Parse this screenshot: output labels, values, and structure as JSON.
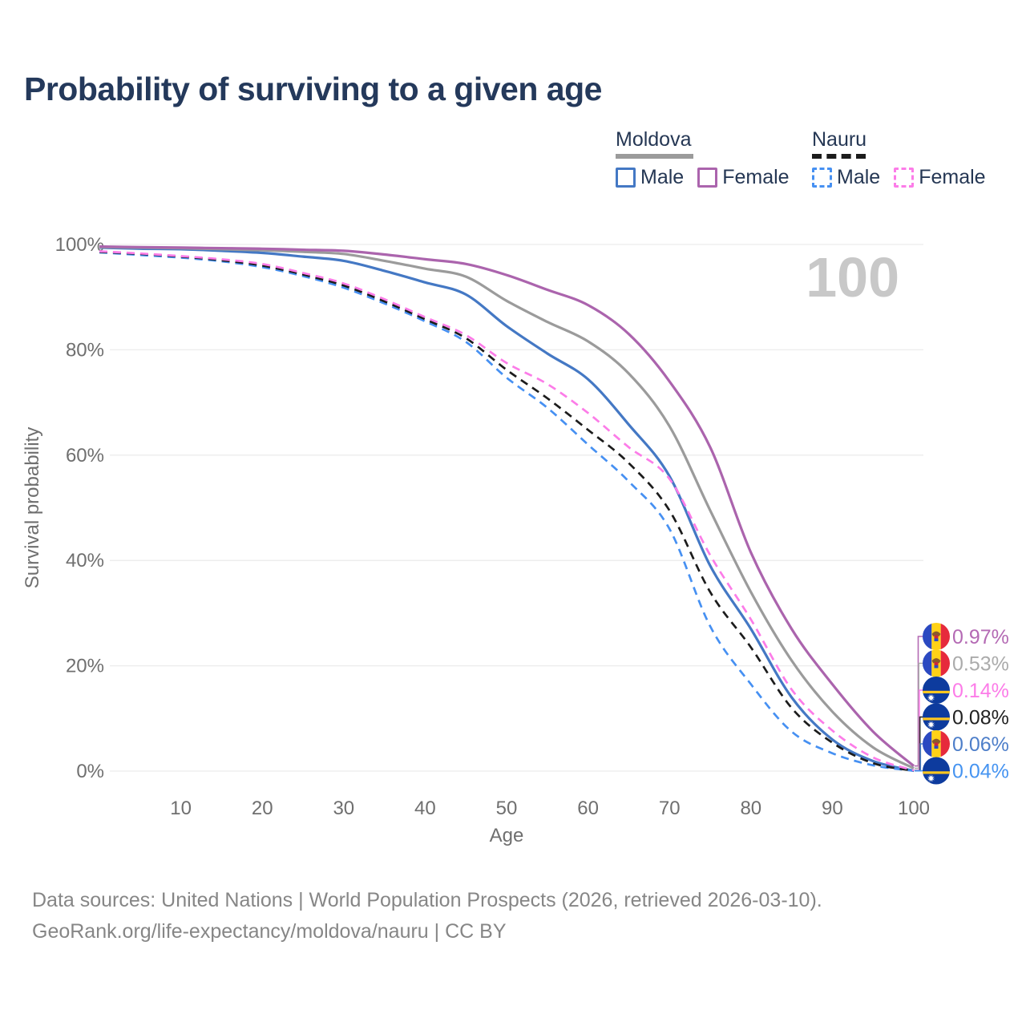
{
  "title": "Probability of surviving to a given age",
  "legend": {
    "groups": [
      {
        "id": "moldova",
        "title": "Moldova",
        "line_style": "solid",
        "items": [
          {
            "label": "Male"
          },
          {
            "label": "Female"
          }
        ]
      },
      {
        "id": "nauru",
        "title": "Nauru",
        "line_style": "dashed",
        "items": [
          {
            "label": "Male"
          },
          {
            "label": "Female"
          }
        ]
      }
    ]
  },
  "footer": {
    "line1": "Data sources: United Nations | World Population Prospects (2026, retrieved 2026-03-10).",
    "line2": "GeoRank.org/life-expectancy/moldova/nauru | CC BY"
  },
  "colors": {
    "title_text": "#24395b",
    "legend_text": "#253754",
    "axis_text": "#6f6f6f",
    "footer_text": "#868686",
    "gridline": "#ececec",
    "watermark": "#c8c8c8",
    "moldova_male": "#4478c4",
    "moldova_female": "#ab64ad",
    "moldova_all": "#9b9b9b",
    "nauru_male": "#4690f2",
    "nauru_female": "#fc7ce8",
    "nauru_all": "#1c1c1c",
    "flag_moldova": {
      "blue": "#2b49c1",
      "yellow": "#ffd217",
      "red": "#e62a3c",
      "emblem": "#8a5a2b",
      "shield_red": "#c8273c",
      "shield_blue": "#2b49c1"
    },
    "flag_nauru": {
      "blue": "#0d3b9e",
      "yellow": "#ffc71e",
      "star": "#ffffff"
    }
  },
  "chart_data": {
    "type": "line",
    "x_label": "Age",
    "y_label": "Survival probability",
    "x_ticks": [
      10,
      20,
      30,
      40,
      50,
      60,
      70,
      80,
      90,
      100
    ],
    "y_ticks": [
      0,
      20,
      40,
      60,
      80,
      100
    ],
    "y_tick_suffix": "%",
    "xlim": [
      0,
      100
    ],
    "ylim": [
      0,
      100
    ],
    "grid": "horizontal",
    "legend_position": "top-right",
    "watermark": "100",
    "ages": [
      0,
      5,
      10,
      15,
      20,
      25,
      30,
      35,
      40,
      45,
      50,
      55,
      60,
      65,
      70,
      75,
      80,
      85,
      90,
      95,
      100
    ],
    "series": [
      {
        "id": "moldova-male",
        "name": "Moldova Male",
        "country": "Moldova",
        "sex": "Male",
        "color": "#4478c4",
        "line_style": "solid",
        "values": [
          99.4,
          99.2,
          99.1,
          98.8,
          98.4,
          97.7,
          96.9,
          95.0,
          92.8,
          90.5,
          84.5,
          79.3,
          74.4,
          65.8,
          56.0,
          39.0,
          27.0,
          14.0,
          6.0,
          1.9,
          0.06
        ]
      },
      {
        "id": "moldova-all",
        "name": "Moldova",
        "country": "Moldova",
        "sex": "Both",
        "color": "#9b9b9b",
        "line_style": "solid",
        "values": [
          99.5,
          99.4,
          99.3,
          99.1,
          98.9,
          98.6,
          98.2,
          96.9,
          95.4,
          93.9,
          89.3,
          85.3,
          81.6,
          75.5,
          65.5,
          49.5,
          34.0,
          21.0,
          11.3,
          4.5,
          0.53
        ]
      },
      {
        "id": "moldova-female",
        "name": "Moldova Female",
        "country": "Moldova",
        "sex": "Female",
        "color": "#ab64ad",
        "line_style": "solid",
        "values": [
          99.6,
          99.5,
          99.4,
          99.3,
          99.2,
          99.0,
          98.8,
          98.1,
          97.2,
          96.3,
          94.2,
          91.4,
          88.5,
          83.0,
          74.0,
          61.5,
          41.5,
          27.0,
          16.5,
          7.5,
          0.97
        ]
      },
      {
        "id": "nauru-male",
        "name": "Nauru Male",
        "country": "Nauru",
        "sex": "Male",
        "color": "#4690f2",
        "line_style": "dashed",
        "values": [
          98.5,
          98.0,
          97.5,
          96.8,
          95.7,
          94.0,
          91.8,
          88.8,
          85.4,
          81.5,
          74.7,
          69.0,
          62.0,
          55.0,
          46.0,
          27.5,
          16.5,
          7.5,
          3.4,
          1.1,
          0.04
        ]
      },
      {
        "id": "nauru-all",
        "name": "Nauru",
        "country": "Nauru",
        "sex": "Both",
        "color": "#1c1c1c",
        "line_style": "dashed",
        "values": [
          98.6,
          98.2,
          97.7,
          97.0,
          96.0,
          94.3,
          92.2,
          89.2,
          85.8,
          82.2,
          76.2,
          70.8,
          64.8,
          58.5,
          49.5,
          34.0,
          23.5,
          12.0,
          5.4,
          1.5,
          0.08
        ]
      },
      {
        "id": "nauru-female",
        "name": "Nauru Female",
        "country": "Nauru",
        "sex": "Female",
        "color": "#fc7ce8",
        "line_style": "dashed",
        "values": [
          98.7,
          98.3,
          97.8,
          97.2,
          96.3,
          94.6,
          92.6,
          89.6,
          86.2,
          82.8,
          77.5,
          73.5,
          68.0,
          61.5,
          55.5,
          41.0,
          28.8,
          15.5,
          7.7,
          2.6,
          0.14
        ]
      }
    ],
    "end_labels": [
      {
        "value_label": "0.97%",
        "series": "moldova-female",
        "flag": "moldova",
        "color": "#b46ab4"
      },
      {
        "value_label": "0.53%",
        "series": "moldova-all",
        "flag": "moldova",
        "color": "#ababab"
      },
      {
        "value_label": "0.14%",
        "series": "nauru-female",
        "flag": "nauru",
        "color": "#fc7ce8"
      },
      {
        "value_label": "0.08%",
        "series": "nauru-all",
        "flag": "nauru",
        "color": "#222222"
      },
      {
        "value_label": "0.06%",
        "series": "moldova-male",
        "flag": "moldova",
        "color": "#4d7ec9"
      },
      {
        "value_label": "0.04%",
        "series": "nauru-male",
        "flag": "nauru",
        "color": "#4694f1"
      }
    ]
  }
}
